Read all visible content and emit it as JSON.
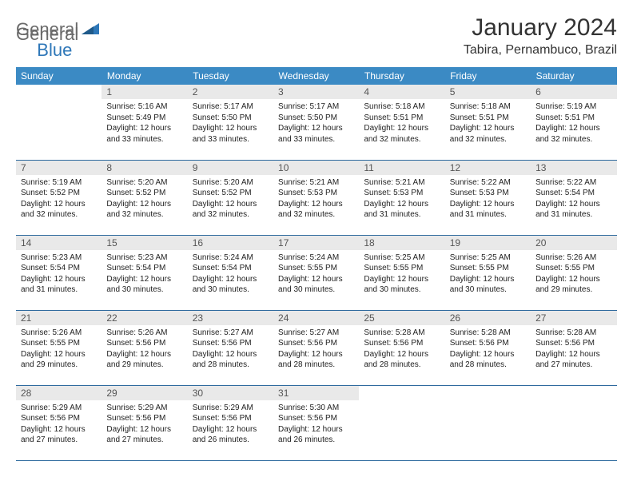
{
  "logo": {
    "part1": "General",
    "part2": "Blue"
  },
  "title": "January 2024",
  "location": "Tabira, Pernambuco, Brazil",
  "colors": {
    "header_bg": "#3b8ac4",
    "header_fg": "#ffffff",
    "daynum_bg": "#e9e9e9",
    "row_border": "#2e6a9e",
    "logo_gray": "#6a6a6a",
    "logo_blue": "#2e77b8"
  },
  "weekdays": [
    "Sunday",
    "Monday",
    "Tuesday",
    "Wednesday",
    "Thursday",
    "Friday",
    "Saturday"
  ],
  "first_weekday_offset": 1,
  "days": [
    {
      "n": 1,
      "sunrise": "5:16 AM",
      "sunset": "5:49 PM",
      "daylight": "12 hours and 33 minutes."
    },
    {
      "n": 2,
      "sunrise": "5:17 AM",
      "sunset": "5:50 PM",
      "daylight": "12 hours and 33 minutes."
    },
    {
      "n": 3,
      "sunrise": "5:17 AM",
      "sunset": "5:50 PM",
      "daylight": "12 hours and 33 minutes."
    },
    {
      "n": 4,
      "sunrise": "5:18 AM",
      "sunset": "5:51 PM",
      "daylight": "12 hours and 32 minutes."
    },
    {
      "n": 5,
      "sunrise": "5:18 AM",
      "sunset": "5:51 PM",
      "daylight": "12 hours and 32 minutes."
    },
    {
      "n": 6,
      "sunrise": "5:19 AM",
      "sunset": "5:51 PM",
      "daylight": "12 hours and 32 minutes."
    },
    {
      "n": 7,
      "sunrise": "5:19 AM",
      "sunset": "5:52 PM",
      "daylight": "12 hours and 32 minutes."
    },
    {
      "n": 8,
      "sunrise": "5:20 AM",
      "sunset": "5:52 PM",
      "daylight": "12 hours and 32 minutes."
    },
    {
      "n": 9,
      "sunrise": "5:20 AM",
      "sunset": "5:52 PM",
      "daylight": "12 hours and 32 minutes."
    },
    {
      "n": 10,
      "sunrise": "5:21 AM",
      "sunset": "5:53 PM",
      "daylight": "12 hours and 32 minutes."
    },
    {
      "n": 11,
      "sunrise": "5:21 AM",
      "sunset": "5:53 PM",
      "daylight": "12 hours and 31 minutes."
    },
    {
      "n": 12,
      "sunrise": "5:22 AM",
      "sunset": "5:53 PM",
      "daylight": "12 hours and 31 minutes."
    },
    {
      "n": 13,
      "sunrise": "5:22 AM",
      "sunset": "5:54 PM",
      "daylight": "12 hours and 31 minutes."
    },
    {
      "n": 14,
      "sunrise": "5:23 AM",
      "sunset": "5:54 PM",
      "daylight": "12 hours and 31 minutes."
    },
    {
      "n": 15,
      "sunrise": "5:23 AM",
      "sunset": "5:54 PM",
      "daylight": "12 hours and 30 minutes."
    },
    {
      "n": 16,
      "sunrise": "5:24 AM",
      "sunset": "5:54 PM",
      "daylight": "12 hours and 30 minutes."
    },
    {
      "n": 17,
      "sunrise": "5:24 AM",
      "sunset": "5:55 PM",
      "daylight": "12 hours and 30 minutes."
    },
    {
      "n": 18,
      "sunrise": "5:25 AM",
      "sunset": "5:55 PM",
      "daylight": "12 hours and 30 minutes."
    },
    {
      "n": 19,
      "sunrise": "5:25 AM",
      "sunset": "5:55 PM",
      "daylight": "12 hours and 30 minutes."
    },
    {
      "n": 20,
      "sunrise": "5:26 AM",
      "sunset": "5:55 PM",
      "daylight": "12 hours and 29 minutes."
    },
    {
      "n": 21,
      "sunrise": "5:26 AM",
      "sunset": "5:55 PM",
      "daylight": "12 hours and 29 minutes."
    },
    {
      "n": 22,
      "sunrise": "5:26 AM",
      "sunset": "5:56 PM",
      "daylight": "12 hours and 29 minutes."
    },
    {
      "n": 23,
      "sunrise": "5:27 AM",
      "sunset": "5:56 PM",
      "daylight": "12 hours and 28 minutes."
    },
    {
      "n": 24,
      "sunrise": "5:27 AM",
      "sunset": "5:56 PM",
      "daylight": "12 hours and 28 minutes."
    },
    {
      "n": 25,
      "sunrise": "5:28 AM",
      "sunset": "5:56 PM",
      "daylight": "12 hours and 28 minutes."
    },
    {
      "n": 26,
      "sunrise": "5:28 AM",
      "sunset": "5:56 PM",
      "daylight": "12 hours and 28 minutes."
    },
    {
      "n": 27,
      "sunrise": "5:28 AM",
      "sunset": "5:56 PM",
      "daylight": "12 hours and 27 minutes."
    },
    {
      "n": 28,
      "sunrise": "5:29 AM",
      "sunset": "5:56 PM",
      "daylight": "12 hours and 27 minutes."
    },
    {
      "n": 29,
      "sunrise": "5:29 AM",
      "sunset": "5:56 PM",
      "daylight": "12 hours and 27 minutes."
    },
    {
      "n": 30,
      "sunrise": "5:29 AM",
      "sunset": "5:56 PM",
      "daylight": "12 hours and 26 minutes."
    },
    {
      "n": 31,
      "sunrise": "5:30 AM",
      "sunset": "5:56 PM",
      "daylight": "12 hours and 26 minutes."
    }
  ],
  "labels": {
    "sunrise": "Sunrise:",
    "sunset": "Sunset:",
    "daylight": "Daylight:"
  }
}
